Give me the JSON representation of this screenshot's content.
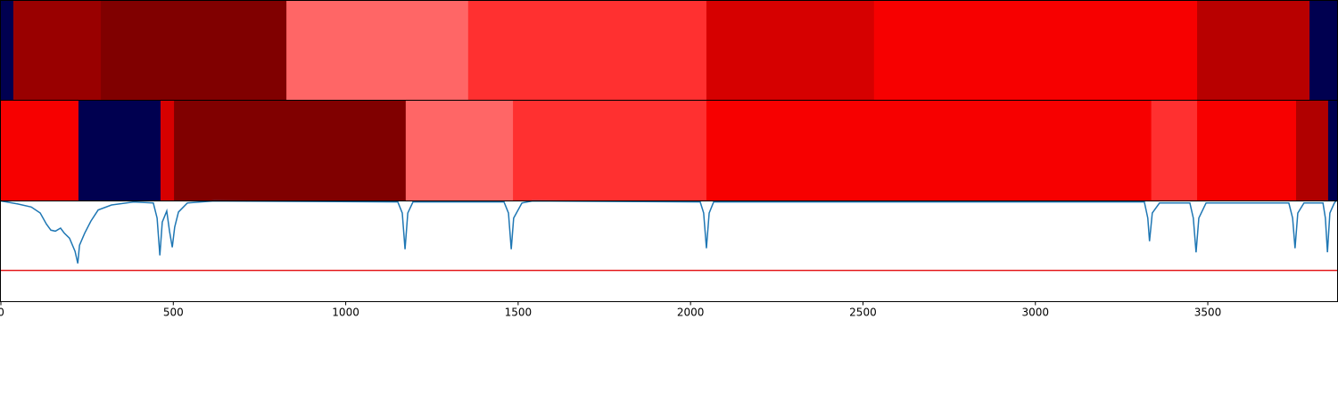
{
  "chart_data": [
    {
      "type": "strip",
      "xlim": [
        0,
        3875
      ],
      "bins": [
        0,
        36,
        290,
        828,
        1355,
        2046,
        2532,
        3469,
        3795,
        3875
      ],
      "colors": [
        "#000050",
        "#990000",
        "#800000",
        "#ff6666",
        "#ff3030",
        "#d60000",
        "#f70000",
        "#b80000",
        "#000050"
      ]
    },
    {
      "type": "strip",
      "xlim": [
        0,
        3875
      ],
      "bins": [
        0,
        225,
        463,
        502,
        1174,
        1485,
        2046,
        3336,
        3469,
        3756,
        3849,
        3875
      ],
      "colors": [
        "#f70000",
        "#000050",
        "#d60000",
        "#800000",
        "#ff6666",
        "#ff3030",
        "#f70000",
        "#ff3030",
        "#f70000",
        "#b00000",
        "#000050"
      ]
    },
    {
      "type": "line",
      "xlim": [
        0,
        3875
      ],
      "ylim": [
        0,
        1
      ],
      "xticks": [
        0,
        500,
        1000,
        1500,
        2000,
        2500,
        3000,
        3500
      ],
      "hline": {
        "value": 0.31,
        "color": "#e41a1c"
      },
      "x": [
        0,
        49,
        88,
        114,
        132,
        145,
        158,
        173,
        184,
        199,
        215,
        223,
        228,
        243,
        261,
        282,
        321,
        385,
        442,
        453,
        461,
        468,
        481,
        489,
        497,
        504,
        515,
        541,
        618,
        1151,
        1164,
        1172,
        1180,
        1195,
        1459,
        1472,
        1480,
        1487,
        1511,
        1542,
        2028,
        2038,
        2046,
        2054,
        2067,
        3316,
        3326,
        3331,
        3339,
        3360,
        3448,
        3458,
        3466,
        3474,
        3495,
        3735,
        3746,
        3753,
        3761,
        3779,
        3834,
        3841,
        3847,
        3854,
        3867,
        3872
      ],
      "series": [
        {
          "color": "#1f77b4",
          "values": [
            1.0,
            0.97,
            0.94,
            0.88,
            0.77,
            0.71,
            0.7,
            0.73,
            0.68,
            0.63,
            0.5,
            0.38,
            0.56,
            0.68,
            0.8,
            0.91,
            0.96,
            0.99,
            0.98,
            0.83,
            0.46,
            0.79,
            0.9,
            0.7,
            0.54,
            0.74,
            0.89,
            0.98,
            1.0,
            0.99,
            0.88,
            0.52,
            0.88,
            0.99,
            0.99,
            0.88,
            0.52,
            0.83,
            0.98,
            1.0,
            0.99,
            0.88,
            0.53,
            0.88,
            0.99,
            0.99,
            0.83,
            0.6,
            0.88,
            0.98,
            0.98,
            0.83,
            0.49,
            0.83,
            0.98,
            0.98,
            0.83,
            0.53,
            0.88,
            0.98,
            0.98,
            0.83,
            0.49,
            0.88,
            0.98,
            1.0
          ]
        }
      ]
    }
  ]
}
